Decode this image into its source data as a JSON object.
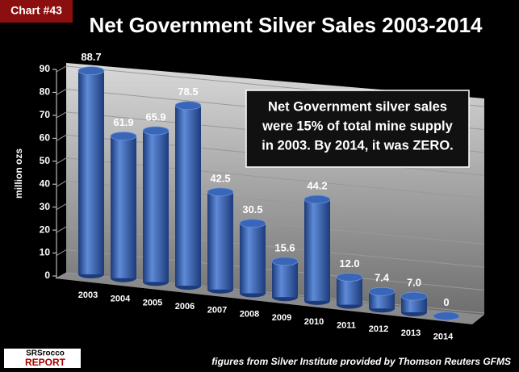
{
  "chart_data": {
    "type": "bar",
    "badge": "Chart #43",
    "title": "Net Government Silver Sales 2003-2014",
    "y_label": "million ozs",
    "categories": [
      "2003",
      "2004",
      "2005",
      "2006",
      "2007",
      "2008",
      "2009",
      "2010",
      "2011",
      "2012",
      "2013",
      "2014"
    ],
    "values": [
      88.7,
      61.9,
      65.9,
      78.5,
      42.5,
      30.5,
      15.6,
      44.2,
      12.0,
      7.4,
      7.0,
      0
    ],
    "value_labels": [
      "88.7",
      "61.9",
      "65.9",
      "78.5",
      "42.5",
      "30.5",
      "15.6",
      "44.2",
      "12.0",
      "7.4",
      "7.0",
      "0"
    ],
    "color": "#3a66b8",
    "ylim": [
      0,
      90
    ],
    "yticks": [
      0,
      10,
      20,
      30,
      40,
      50,
      60,
      70,
      80,
      90
    ],
    "grid": true,
    "annotation": [
      "Net Government silver sales",
      "were 15% of total mine supply",
      "in 2003.  By 2014, it was ZERO."
    ],
    "source": "figures from Silver Institute provided by Thomson Reuters GFMS",
    "logo": [
      "SRSrocco",
      "REPORT"
    ]
  }
}
